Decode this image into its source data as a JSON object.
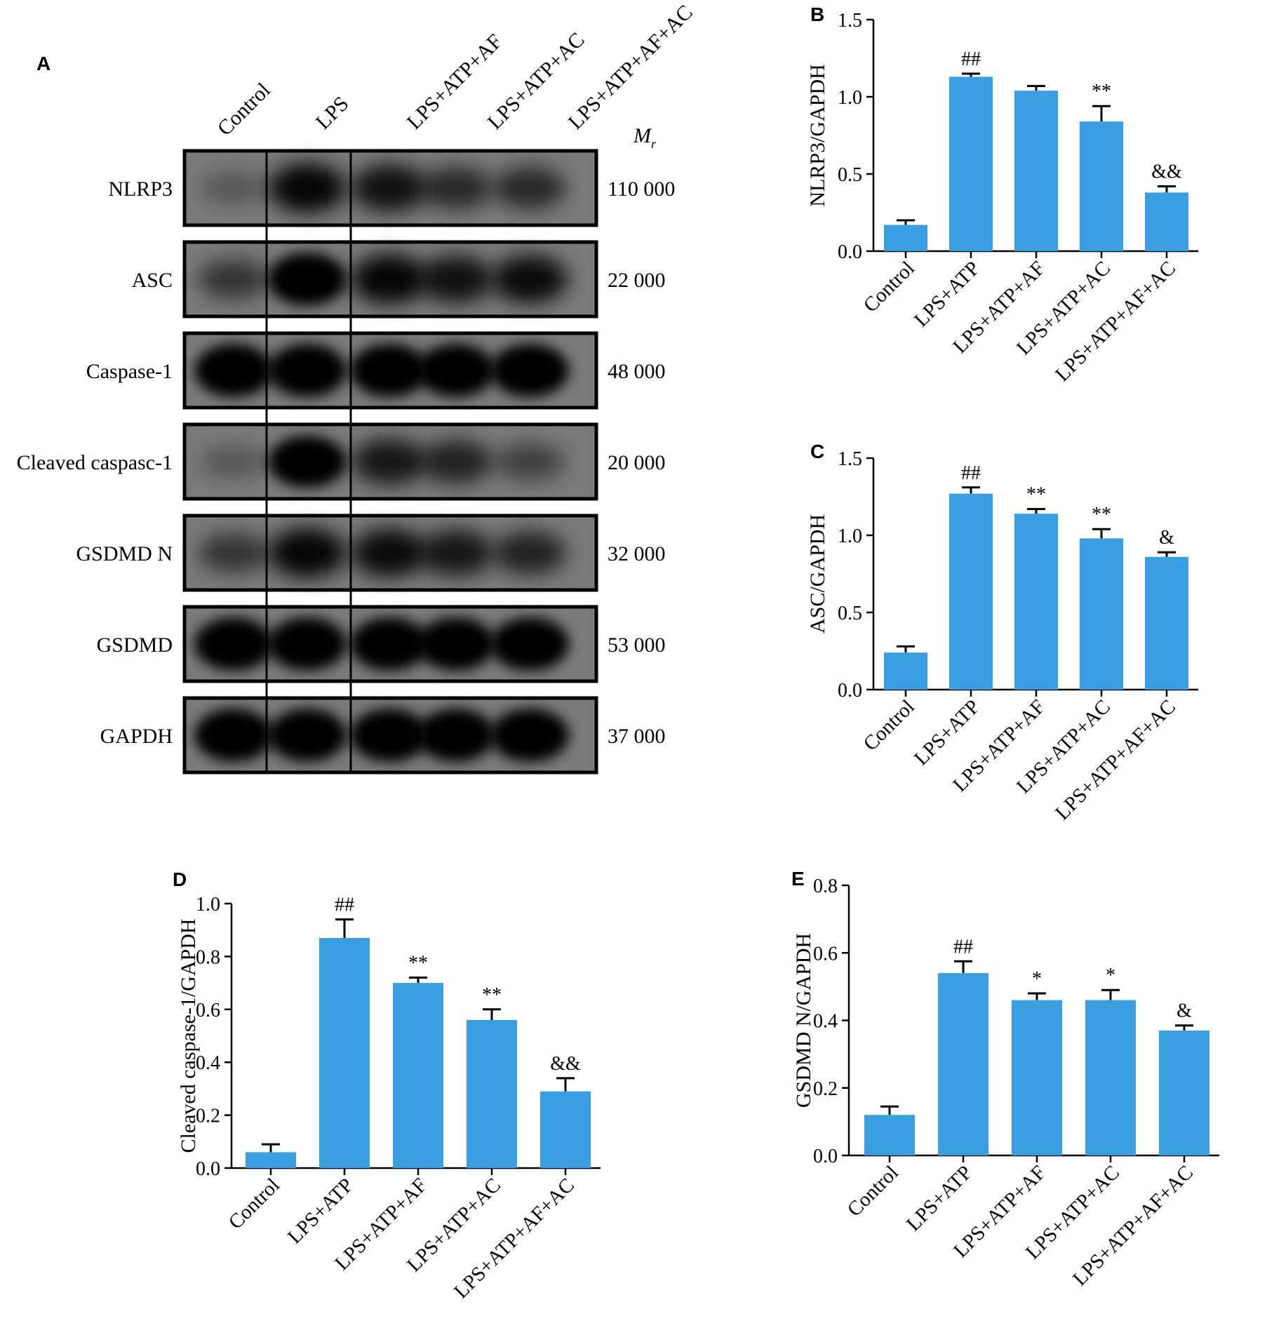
{
  "panel_a": {
    "letter": "A",
    "lanes": [
      "Control",
      "LPS",
      "LPS+ATP+AF",
      "LPS+ATP+AC",
      "LPS+ATP+AF+AC"
    ],
    "mr_label_main": "M",
    "mr_label_sub": "r",
    "rows": [
      {
        "protein": "NLRP3",
        "mr": "110 000",
        "intensity": [
          0.15,
          0.85,
          0.75,
          0.55,
          0.55
        ]
      },
      {
        "protein": "ASC",
        "mr": "22 000",
        "intensity": [
          0.45,
          1.0,
          0.85,
          0.75,
          0.8
        ]
      },
      {
        "protein": "Caspase-1",
        "mr": "48 000",
        "intensity": [
          1.0,
          1.0,
          1.0,
          1.0,
          1.0
        ]
      },
      {
        "protein": "Cleaved caspasc-1",
        "mr": "20 000",
        "intensity": [
          0.15,
          0.95,
          0.7,
          0.6,
          0.35
        ]
      },
      {
        "protein": "GSDMD N",
        "mr": "32 000",
        "intensity": [
          0.45,
          0.85,
          0.8,
          0.7,
          0.6
        ]
      },
      {
        "protein": "GSDMD",
        "mr": "53 000",
        "intensity": [
          1.0,
          1.0,
          1.0,
          1.0,
          1.0
        ]
      },
      {
        "protein": "GAPDH",
        "mr": "37 000",
        "intensity": [
          1.0,
          1.0,
          1.0,
          1.0,
          1.0
        ]
      }
    ]
  },
  "colors": {
    "bar": "#3a9fe0",
    "band": "#000000",
    "membrane": "#7a7a7a"
  },
  "chart_data": [
    {
      "letter": "B",
      "type": "bar",
      "categories": [
        "Control",
        "LPS+ATP",
        "LPS+ATP+AF",
        "LPS+ATP+AC",
        "LPS+ATP+AF+AC"
      ],
      "values": [
        0.17,
        1.13,
        1.04,
        0.84,
        0.38
      ],
      "errors": [
        0.03,
        0.02,
        0.03,
        0.1,
        0.04
      ],
      "annotations": [
        "",
        "##",
        "",
        "**",
        "&&"
      ],
      "ylabel": "NLRP3/GAPDH",
      "ylim": [
        0,
        1.5
      ],
      "yticks": [
        0,
        0.5,
        1.0,
        1.5
      ],
      "ytick_labels": [
        "0.0",
        "0.5",
        "1.0",
        "1.5"
      ]
    },
    {
      "letter": "C",
      "type": "bar",
      "categories": [
        "Control",
        "LPS+ATP",
        "LPS+ATP+AF",
        "LPS+ATP+AC",
        "LPS+ATP+AF+AC"
      ],
      "values": [
        0.24,
        1.27,
        1.14,
        0.98,
        0.86
      ],
      "errors": [
        0.04,
        0.04,
        0.03,
        0.06,
        0.03
      ],
      "annotations": [
        "",
        "##",
        "**",
        "**",
        "&"
      ],
      "ylabel": "ASC/GAPDH",
      "ylim": [
        0,
        1.5
      ],
      "yticks": [
        0,
        0.5,
        1.0,
        1.5
      ],
      "ytick_labels": [
        "0.0",
        "0.5",
        "1.0",
        "1.5"
      ]
    },
    {
      "letter": "D",
      "type": "bar",
      "categories": [
        "Control",
        "LPS+ATP",
        "LPS+ATP+AF",
        "LPS+ATP+AC",
        "LPS+ATP+AF+AC"
      ],
      "values": [
        0.06,
        0.87,
        0.7,
        0.56,
        0.29
      ],
      "errors": [
        0.03,
        0.07,
        0.02,
        0.04,
        0.05
      ],
      "annotations": [
        "",
        "##",
        "**",
        "**",
        "&&"
      ],
      "ylabel": "Cleaved caspase-1/GAPDH",
      "ylim": [
        0,
        1.0
      ],
      "yticks": [
        0,
        0.2,
        0.4,
        0.6,
        0.8,
        1.0
      ],
      "ytick_labels": [
        "0.0",
        "0.2",
        "0.4",
        "0.6",
        "0.8",
        "1.0"
      ]
    },
    {
      "letter": "E",
      "type": "bar",
      "categories": [
        "Control",
        "LPS+ATP",
        "LPS+ATP+AF",
        "LPS+ATP+AC",
        "LPS+ATP+AF+AC"
      ],
      "values": [
        0.12,
        0.54,
        0.46,
        0.46,
        0.37
      ],
      "errors": [
        0.025,
        0.035,
        0.02,
        0.03,
        0.015
      ],
      "annotations": [
        "",
        "##",
        "*",
        "*",
        "&"
      ],
      "ylabel": "GSDMD N/GAPDH",
      "ylim": [
        0,
        0.8
      ],
      "yticks": [
        0,
        0.2,
        0.4,
        0.6,
        0.8
      ],
      "ytick_labels": [
        "0.0",
        "0.2",
        "0.4",
        "0.6",
        "0.8"
      ]
    }
  ]
}
